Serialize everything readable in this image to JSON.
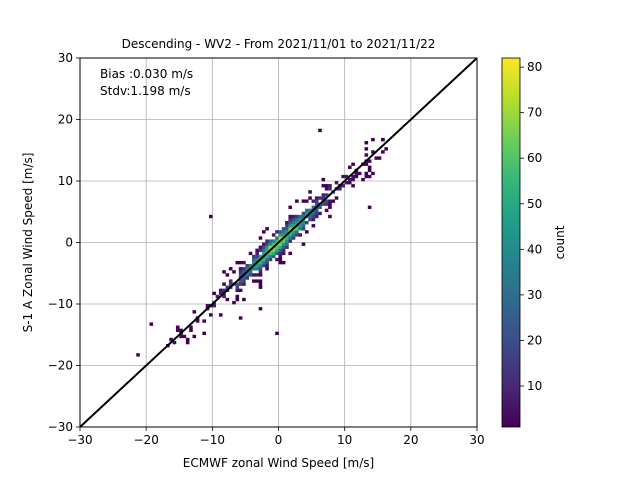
{
  "chart_data": {
    "type": "heatmap",
    "title": "Descending - WV2 - From 2021/11/01 to 2021/11/22",
    "xlabel": "ECMWF zonal Wind Speed [m/s]",
    "ylabel": "S-1 A Zonal Wind Speed [m/s]",
    "xlim": [
      -30,
      30
    ],
    "ylim": [
      -30,
      30
    ],
    "xticks": [
      "-30",
      "-20",
      "-10",
      "0",
      "10",
      "20",
      "30"
    ],
    "yticks": [
      "-30",
      "-20",
      "-10",
      "0",
      "10",
      "20",
      "30"
    ],
    "grid": true,
    "annotations": [
      "Bias :0.030 m/s",
      "Stdv:1.198 m/s"
    ],
    "reference_line": {
      "from": [
        -30,
        -30
      ],
      "to": [
        30,
        30
      ],
      "color": "#000000"
    },
    "bin_size": 0.5,
    "colorbar": {
      "label": "count",
      "range": [
        1,
        82
      ],
      "ticks": [
        "10",
        "20",
        "30",
        "40",
        "50",
        "60",
        "70",
        "80"
      ],
      "colormap": "viridis"
    },
    "density_model": {
      "spread_std": 1.2,
      "x_range": [
        -17,
        16
      ],
      "peak_count": 82,
      "outliers": [
        [
          -21.5,
          -18.5
        ],
        [
          -10.5,
          4
        ],
        [
          6,
          18
        ],
        [
          -0.5,
          -15
        ],
        [
          15.5,
          16.5
        ],
        [
          -14,
          -16.5
        ],
        [
          -19.5,
          -13.5
        ],
        [
          13.5,
          5.5
        ],
        [
          -3,
          -11
        ],
        [
          -6,
          -12.5
        ]
      ]
    }
  }
}
